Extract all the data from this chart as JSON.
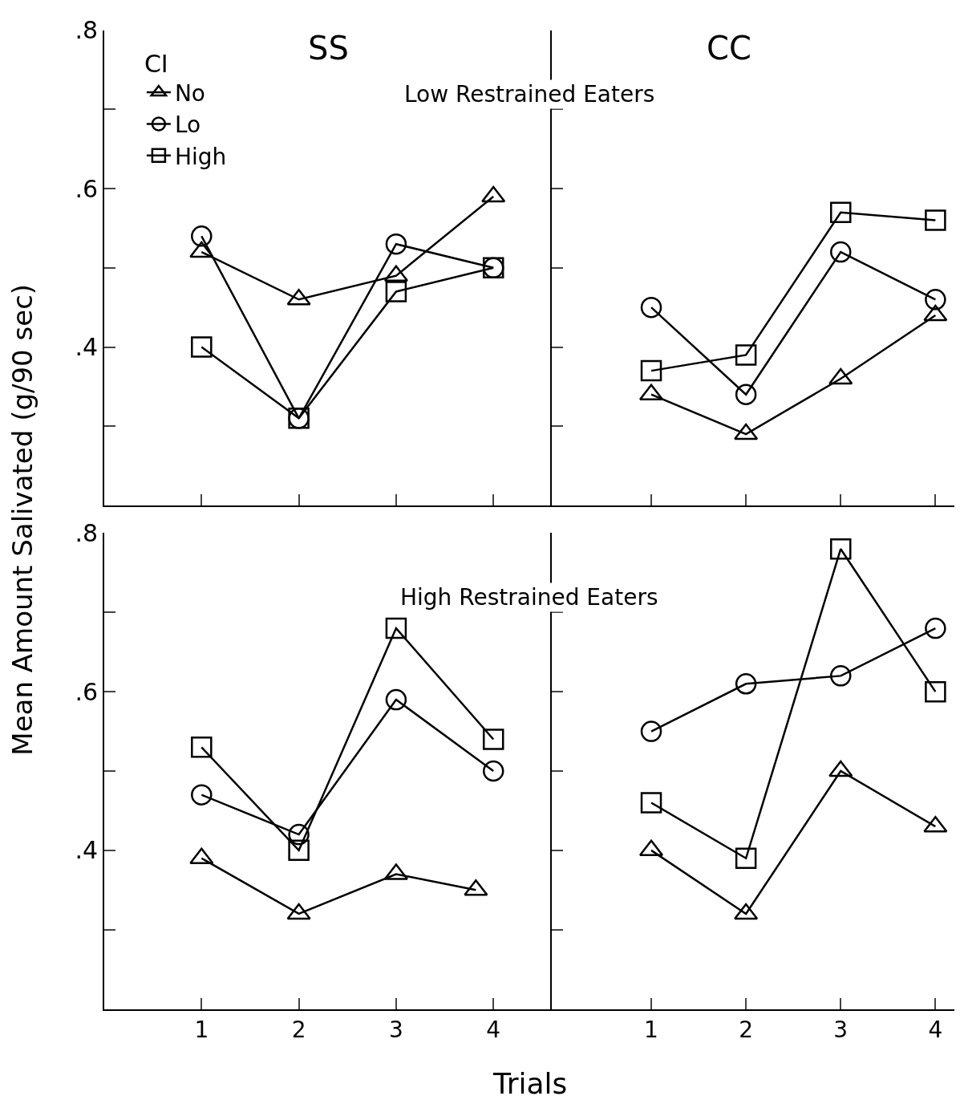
{
  "chart_data": [
    {
      "type": "line",
      "title": "SS",
      "ylabel": "Mean Amount Salivated (g/90 sec)",
      "annotations": [
        "Low Restrained Eaters"
      ],
      "legend_title": "CI",
      "legend": "top left",
      "x": [
        1,
        2,
        3,
        4
      ],
      "xlim": [
        0,
        4.6
      ],
      "ylim": [
        0.2,
        0.8
      ],
      "xticks": [
        1,
        2,
        3,
        4
      ],
      "yticks": [
        {
          "value": 0.3,
          "label": null
        },
        {
          "value": 0.4,
          "label": ".4"
        },
        {
          "value": 0.5,
          "label": null
        },
        {
          "value": 0.6,
          "label": ".6"
        },
        {
          "value": 0.7,
          "label": null
        },
        {
          "value": 0.8,
          "label": ".8"
        }
      ],
      "tick_labels": "y",
      "series": [
        {
          "name": "No",
          "color": "#000000",
          "marker": "triangle",
          "values": [
            0.52,
            0.46,
            0.49,
            0.59
          ]
        },
        {
          "name": "Lo",
          "color": "#000000",
          "marker": "circle",
          "values": [
            0.54,
            0.31,
            0.53,
            0.5
          ]
        },
        {
          "name": "High",
          "color": "#000000",
          "marker": "square",
          "values": [
            0.4,
            0.31,
            0.47,
            0.5
          ]
        }
      ]
    },
    {
      "type": "line",
      "title": "CC",
      "x": [
        1,
        2,
        3,
        4
      ],
      "xlim": [
        -0.05,
        4.2
      ],
      "ylim": [
        0.2,
        0.8
      ],
      "xticks": [
        1,
        2,
        3,
        4
      ],
      "yticks": [
        0.3,
        0.4,
        0.5,
        0.6,
        0.7,
        0.8
      ],
      "tick_labels": false,
      "series": [
        {
          "color": "#000000",
          "marker": "triangle",
          "values": [
            0.34,
            0.29,
            0.36,
            0.44
          ]
        },
        {
          "color": "#000000",
          "marker": "circle",
          "values": [
            0.45,
            0.34,
            0.52,
            0.46
          ]
        },
        {
          "color": "#000000",
          "marker": "square",
          "values": [
            0.37,
            0.39,
            0.57,
            0.56
          ]
        }
      ]
    },
    {
      "type": "line",
      "xlabel": "Trials",
      "annotations": [
        "High Restrained Eaters"
      ],
      "x": [
        1,
        2,
        3,
        4
      ],
      "xlim": [
        0,
        4.6
      ],
      "ylim": [
        0.2,
        0.8
      ],
      "xticks": [
        1,
        2,
        3,
        4
      ],
      "yticks": [
        {
          "value": 0.3,
          "label": null
        },
        {
          "value": 0.4,
          "label": ".4"
        },
        {
          "value": 0.5,
          "label": null
        },
        {
          "value": 0.6,
          "label": ".6"
        },
        {
          "value": 0.7,
          "label": null
        },
        {
          "value": 0.8,
          "label": ".8"
        }
      ],
      "series": [
        {
          "color": "#000000",
          "marker": "triangle",
          "x": [
            1,
            2,
            3,
            3.82
          ],
          "values": [
            0.39,
            0.32,
            0.37,
            0.35
          ]
        },
        {
          "color": "#000000",
          "marker": "circle",
          "values": [
            0.47,
            0.42,
            0.59,
            0.5
          ]
        },
        {
          "color": "#000000",
          "marker": "square",
          "values": [
            0.53,
            0.4,
            0.68,
            0.54
          ]
        }
      ]
    },
    {
      "type": "line",
      "x": [
        1,
        2,
        3,
        4
      ],
      "xlim": [
        -0.05,
        4.2
      ],
      "ylim": [
        0.2,
        0.8
      ],
      "xticks": [
        1,
        2,
        3,
        4
      ],
      "yticks": [
        0.3,
        0.4,
        0.5,
        0.6,
        0.7,
        0.8
      ],
      "tick_labels": "x",
      "series": [
        {
          "color": "#000000",
          "marker": "triangle",
          "values": [
            0.4,
            0.32,
            0.5,
            0.43
          ]
        },
        {
          "color": "#000000",
          "marker": "circle",
          "values": [
            0.55,
            0.61,
            0.62,
            0.68
          ]
        },
        {
          "color": "#000000",
          "marker": "square",
          "values": [
            0.46,
            0.39,
            0.78,
            0.6
          ]
        }
      ]
    }
  ]
}
